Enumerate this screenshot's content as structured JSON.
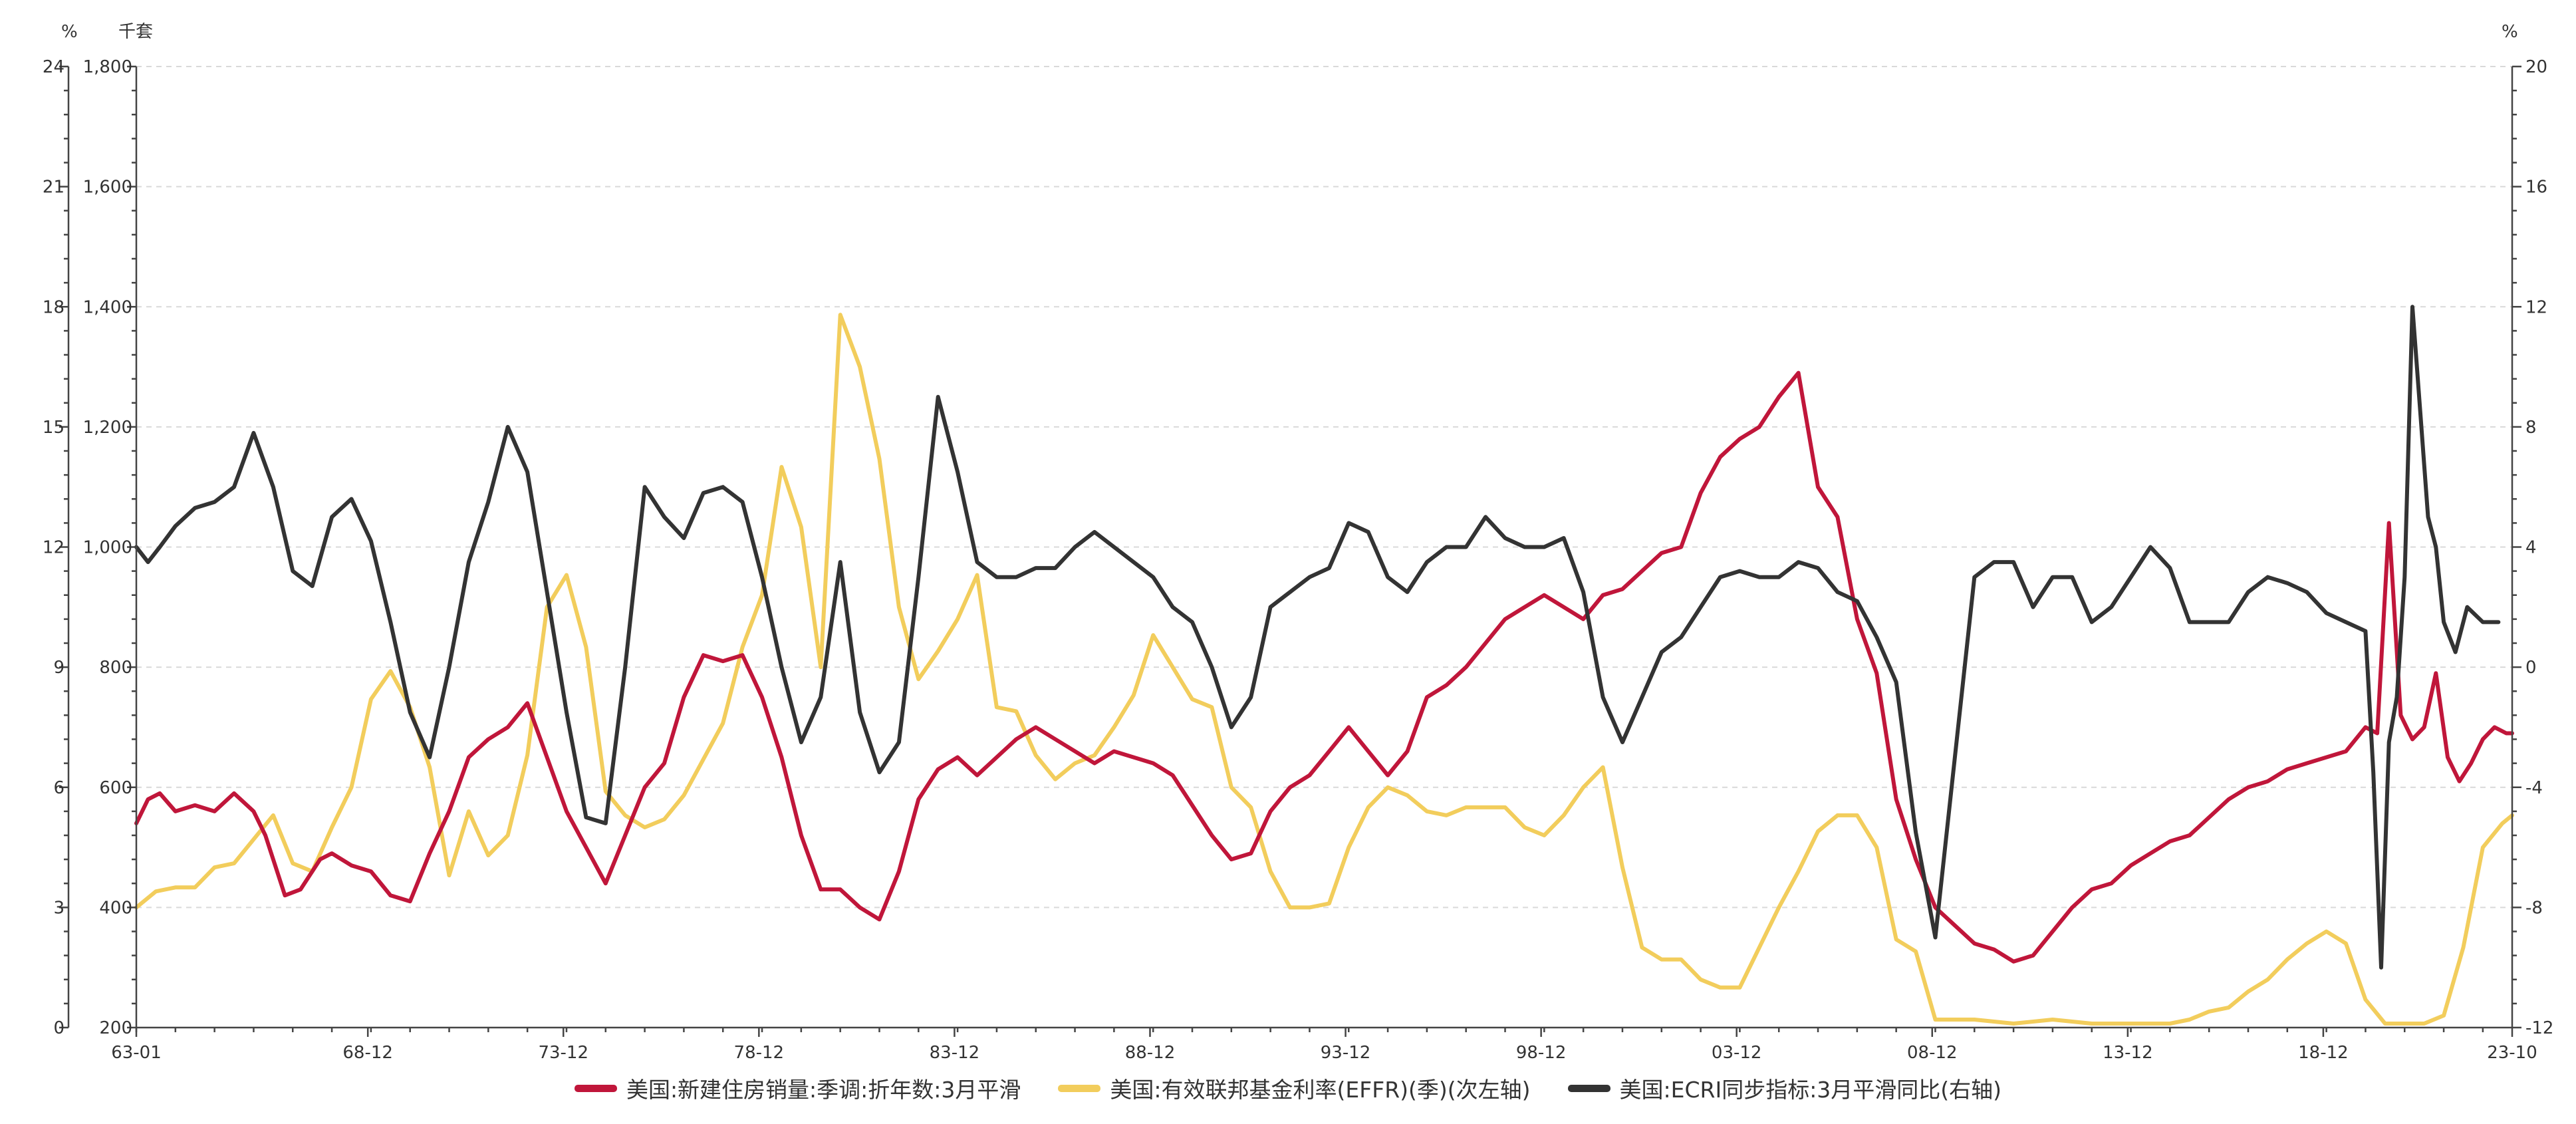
{
  "chart_data": {
    "type": "line",
    "units": {
      "left_outer": "%",
      "left_inner": "千套",
      "right": "%"
    },
    "axes": {
      "left_outer": {
        "min": 0,
        "max": 24,
        "ticks": [
          "0",
          "3",
          "6",
          "9",
          "12",
          "15",
          "18",
          "21",
          "24"
        ]
      },
      "left_inner": {
        "min": 200,
        "max": 1800,
        "ticks": [
          "200",
          "400",
          "600",
          "800",
          "1,000",
          "1,200",
          "1,400",
          "1,600",
          "1,800"
        ]
      },
      "right": {
        "min": -12,
        "max": 20,
        "ticks": [
          "-12",
          "-8",
          "-4",
          "0",
          "4",
          "8",
          "12",
          "16",
          "20"
        ]
      },
      "x": {
        "min": 1963.0,
        "max": 2023.75,
        "tick_labels": [
          "63-01",
          "68-12",
          "73-12",
          "78-12",
          "83-12",
          "88-12",
          "93-12",
          "98-12",
          "03-12",
          "08-12",
          "13-12",
          "18-12",
          "23-10"
        ],
        "tick_values": [
          1963.0,
          1968.92,
          1973.92,
          1978.92,
          1983.92,
          1988.92,
          1993.92,
          1998.92,
          2003.92,
          2008.92,
          2013.92,
          2018.92,
          2023.75
        ]
      }
    },
    "grid": true,
    "legend_position": "bottom",
    "series": [
      {
        "name": "美国:新建住房销量:季调:折年数:3月平滑",
        "axis": "left_inner",
        "color": "#c0163a",
        "x": [
          1963.0,
          1963.3,
          1963.6,
          1964.0,
          1964.5,
          1965.0,
          1965.5,
          1966.0,
          1966.3,
          1966.8,
          1967.2,
          1967.7,
          1968.0,
          1968.5,
          1969.0,
          1969.5,
          1970.0,
          1970.5,
          1971.0,
          1971.5,
          1972.0,
          1972.5,
          1973.0,
          1973.5,
          1974.0,
          1974.5,
          1975.0,
          1975.5,
          1976.0,
          1976.5,
          1977.0,
          1977.5,
          1978.0,
          1978.5,
          1979.0,
          1979.5,
          1980.0,
          1980.5,
          1981.0,
          1981.5,
          1982.0,
          1982.5,
          1983.0,
          1983.5,
          1984.0,
          1984.5,
          1985.0,
          1985.5,
          1986.0,
          1986.5,
          1987.0,
          1987.5,
          1988.0,
          1988.5,
          1989.0,
          1989.5,
          1990.0,
          1990.5,
          1991.0,
          1991.5,
          1992.0,
          1992.5,
          1993.0,
          1993.5,
          1994.0,
          1994.5,
          1995.0,
          1995.5,
          1996.0,
          1996.5,
          1997.0,
          1997.5,
          1998.0,
          1998.5,
          1999.0,
          1999.5,
          2000.0,
          2000.5,
          2001.0,
          2001.5,
          2002.0,
          2002.5,
          2003.0,
          2003.5,
          2004.0,
          2004.5,
          2005.0,
          2005.5,
          2006.0,
          2006.5,
          2007.0,
          2007.5,
          2008.0,
          2008.5,
          2009.0,
          2009.5,
          2010.0,
          2010.5,
          2011.0,
          2011.5,
          2012.0,
          2012.5,
          2013.0,
          2013.5,
          2014.0,
          2014.5,
          2015.0,
          2015.5,
          2016.0,
          2016.5,
          2017.0,
          2017.5,
          2018.0,
          2018.5,
          2019.0,
          2019.5,
          2020.0,
          2020.3,
          2020.6,
          2020.9,
          2021.2,
          2021.5,
          2021.8,
          2022.1,
          2022.4,
          2022.7,
          2023.0,
          2023.3,
          2023.6,
          2023.75
        ],
        "values": [
          540,
          580,
          590,
          560,
          570,
          560,
          590,
          560,
          520,
          420,
          430,
          480,
          490,
          470,
          460,
          420,
          410,
          490,
          560,
          650,
          680,
          700,
          740,
          650,
          560,
          500,
          440,
          520,
          600,
          640,
          750,
          820,
          810,
          820,
          750,
          650,
          520,
          430,
          430,
          400,
          380,
          460,
          580,
          630,
          650,
          620,
          650,
          680,
          700,
          680,
          660,
          640,
          660,
          650,
          640,
          620,
          570,
          520,
          480,
          490,
          560,
          600,
          620,
          660,
          700,
          660,
          620,
          660,
          750,
          770,
          800,
          840,
          880,
          900,
          920,
          900,
          880,
          920,
          930,
          960,
          990,
          1000,
          1090,
          1150,
          1180,
          1200,
          1250,
          1290,
          1100,
          1050,
          880,
          790,
          580,
          480,
          400,
          370,
          340,
          330,
          310,
          320,
          360,
          400,
          430,
          440,
          470,
          490,
          510,
          520,
          550,
          580,
          600,
          610,
          630,
          640,
          650,
          660,
          700,
          690,
          1040,
          720,
          680,
          700,
          790,
          650,
          610,
          640,
          680,
          700,
          690,
          690
        ]
      },
      {
        "name": "美国:有效联邦基金利率(EFFR)(季)(次左轴)",
        "axis": "left_outer",
        "color": "#f2cd5c",
        "x": [
          1963.0,
          1963.5,
          1964.0,
          1964.5,
          1965.0,
          1965.5,
          1966.0,
          1966.5,
          1967.0,
          1967.5,
          1968.0,
          1968.5,
          1969.0,
          1969.5,
          1970.0,
          1970.5,
          1971.0,
          1971.5,
          1972.0,
          1972.5,
          1973.0,
          1973.5,
          1974.0,
          1974.5,
          1975.0,
          1975.5,
          1976.0,
          1976.5,
          1977.0,
          1977.5,
          1978.0,
          1978.5,
          1979.0,
          1979.5,
          1980.0,
          1980.5,
          1981.0,
          1981.5,
          1982.0,
          1982.5,
          1983.0,
          1983.5,
          1984.0,
          1984.5,
          1985.0,
          1985.5,
          1986.0,
          1986.5,
          1987.0,
          1987.5,
          1988.0,
          1988.5,
          1989.0,
          1989.5,
          1990.0,
          1990.5,
          1991.0,
          1991.5,
          1992.0,
          1992.5,
          1993.0,
          1993.5,
          1994.0,
          1994.5,
          1995.0,
          1995.5,
          1996.0,
          1996.5,
          1997.0,
          1997.5,
          1998.0,
          1998.5,
          1999.0,
          1999.5,
          2000.0,
          2000.5,
          2001.0,
          2001.5,
          2002.0,
          2002.5,
          2003.0,
          2003.5,
          2004.0,
          2004.5,
          2005.0,
          2005.5,
          2006.0,
          2006.5,
          2007.0,
          2007.5,
          2008.0,
          2008.5,
          2009.0,
          2010.0,
          2011.0,
          2012.0,
          2013.0,
          2014.0,
          2015.0,
          2015.5,
          2016.0,
          2016.5,
          2017.0,
          2017.5,
          2018.0,
          2018.5,
          2019.0,
          2019.5,
          2020.0,
          2020.5,
          2021.0,
          2021.5,
          2022.0,
          2022.5,
          2023.0,
          2023.5,
          2023.75
        ],
        "values": [
          3.0,
          3.4,
          3.5,
          3.5,
          4.0,
          4.1,
          4.7,
          5.3,
          4.1,
          3.9,
          5.0,
          6.0,
          8.2,
          8.9,
          8.0,
          6.5,
          3.8,
          5.4,
          4.3,
          4.8,
          6.8,
          10.5,
          11.3,
          9.5,
          5.9,
          5.3,
          5.0,
          5.2,
          5.8,
          6.7,
          7.6,
          9.5,
          10.8,
          14.0,
          12.5,
          9.0,
          17.8,
          16.5,
          14.2,
          10.5,
          8.7,
          9.4,
          10.2,
          11.3,
          8.0,
          7.9,
          6.8,
          6.2,
          6.6,
          6.8,
          7.5,
          8.3,
          9.8,
          9.0,
          8.2,
          8.0,
          6.0,
          5.5,
          3.9,
          3.0,
          3.0,
          3.1,
          4.5,
          5.5,
          6.0,
          5.8,
          5.4,
          5.3,
          5.5,
          5.5,
          5.5,
          5.0,
          4.8,
          5.3,
          6.0,
          6.5,
          4.0,
          2.0,
          1.7,
          1.7,
          1.2,
          1.0,
          1.0,
          2.0,
          3.0,
          3.9,
          4.9,
          5.3,
          5.3,
          4.5,
          2.2,
          1.9,
          0.2,
          0.2,
          0.1,
          0.2,
          0.1,
          0.1,
          0.1,
          0.2,
          0.4,
          0.5,
          0.9,
          1.2,
          1.7,
          2.1,
          2.4,
          2.1,
          0.7,
          0.1,
          0.1,
          0.1,
          0.3,
          2.0,
          4.5,
          5.1,
          5.3
        ]
      },
      {
        "name": "美国:ECRI同步指标:3月平滑同比(右轴)",
        "axis": "right",
        "color": "#333333",
        "x": [
          1963.0,
          1963.3,
          1963.6,
          1964.0,
          1964.5,
          1965.0,
          1965.5,
          1966.0,
          1966.5,
          1967.0,
          1967.5,
          1968.0,
          1968.5,
          1969.0,
          1969.5,
          1970.0,
          1970.5,
          1971.0,
          1971.5,
          1972.0,
          1972.5,
          1973.0,
          1973.5,
          1974.0,
          1974.5,
          1975.0,
          1975.5,
          1976.0,
          1976.5,
          1977.0,
          1977.5,
          1978.0,
          1978.5,
          1979.0,
          1979.5,
          1980.0,
          1980.5,
          1981.0,
          1981.5,
          1982.0,
          1982.5,
          1983.0,
          1983.5,
          1984.0,
          1984.5,
          1985.0,
          1985.5,
          1986.0,
          1986.5,
          1987.0,
          1987.5,
          1988.0,
          1988.5,
          1989.0,
          1989.5,
          1990.0,
          1990.5,
          1991.0,
          1991.5,
          1992.0,
          1992.5,
          1993.0,
          1993.5,
          1994.0,
          1994.5,
          1995.0,
          1995.5,
          1996.0,
          1996.5,
          1997.0,
          1997.5,
          1998.0,
          1998.5,
          1999.0,
          1999.5,
          2000.0,
          2000.5,
          2001.0,
          2001.5,
          2002.0,
          2002.5,
          2003.0,
          2003.5,
          2004.0,
          2004.5,
          2005.0,
          2005.5,
          2006.0,
          2006.5,
          2007.0,
          2007.5,
          2008.0,
          2008.5,
          2009.0,
          2009.5,
          2010.0,
          2010.5,
          2011.0,
          2011.5,
          2012.0,
          2012.5,
          2013.0,
          2013.5,
          2014.0,
          2014.5,
          2015.0,
          2015.5,
          2016.0,
          2016.5,
          2017.0,
          2017.5,
          2018.0,
          2018.5,
          2019.0,
          2019.5,
          2020.0,
          2020.2,
          2020.4,
          2020.6,
          2020.8,
          2021.0,
          2021.2,
          2021.4,
          2021.6,
          2021.8,
          2022.0,
          2022.3,
          2022.6,
          2023.0,
          2023.4
        ],
        "values": [
          4.0,
          3.5,
          4.0,
          4.7,
          5.3,
          5.5,
          6.0,
          7.8,
          6.0,
          3.2,
          2.7,
          5.0,
          5.6,
          4.2,
          1.5,
          -1.5,
          -3.0,
          0.0,
          3.5,
          5.5,
          8.0,
          6.5,
          2.5,
          -1.5,
          -5.0,
          -5.2,
          0.0,
          6.0,
          5.0,
          4.3,
          5.8,
          6.0,
          5.5,
          3.0,
          0.0,
          -2.5,
          -1.0,
          3.5,
          -1.5,
          -3.5,
          -2.5,
          3.0,
          9.0,
          6.5,
          3.5,
          3.0,
          3.0,
          3.3,
          3.3,
          4.0,
          4.5,
          4.0,
          3.5,
          3.0,
          2.0,
          1.5,
          0.0,
          -2.0,
          -1.0,
          2.0,
          2.5,
          3.0,
          3.3,
          4.8,
          4.5,
          3.0,
          2.5,
          3.5,
          4.0,
          4.0,
          5.0,
          4.3,
          4.0,
          4.0,
          4.3,
          2.5,
          -1.0,
          -2.5,
          -1.0,
          0.5,
          1.0,
          2.0,
          3.0,
          3.2,
          3.0,
          3.0,
          3.5,
          3.3,
          2.5,
          2.2,
          1.0,
          -0.5,
          -5.5,
          -9.0,
          -3.0,
          3.0,
          3.5,
          3.5,
          2.0,
          3.0,
          3.0,
          1.5,
          2.0,
          3.0,
          4.0,
          3.3,
          1.5,
          1.5,
          1.5,
          2.5,
          3.0,
          2.8,
          2.5,
          1.8,
          1.5,
          1.2,
          -3.5,
          -10.0,
          -2.5,
          -1.0,
          3.0,
          12.0,
          8.5,
          5.0,
          4.0,
          1.5,
          0.5,
          2.0,
          1.5,
          1.5
        ]
      }
    ]
  }
}
